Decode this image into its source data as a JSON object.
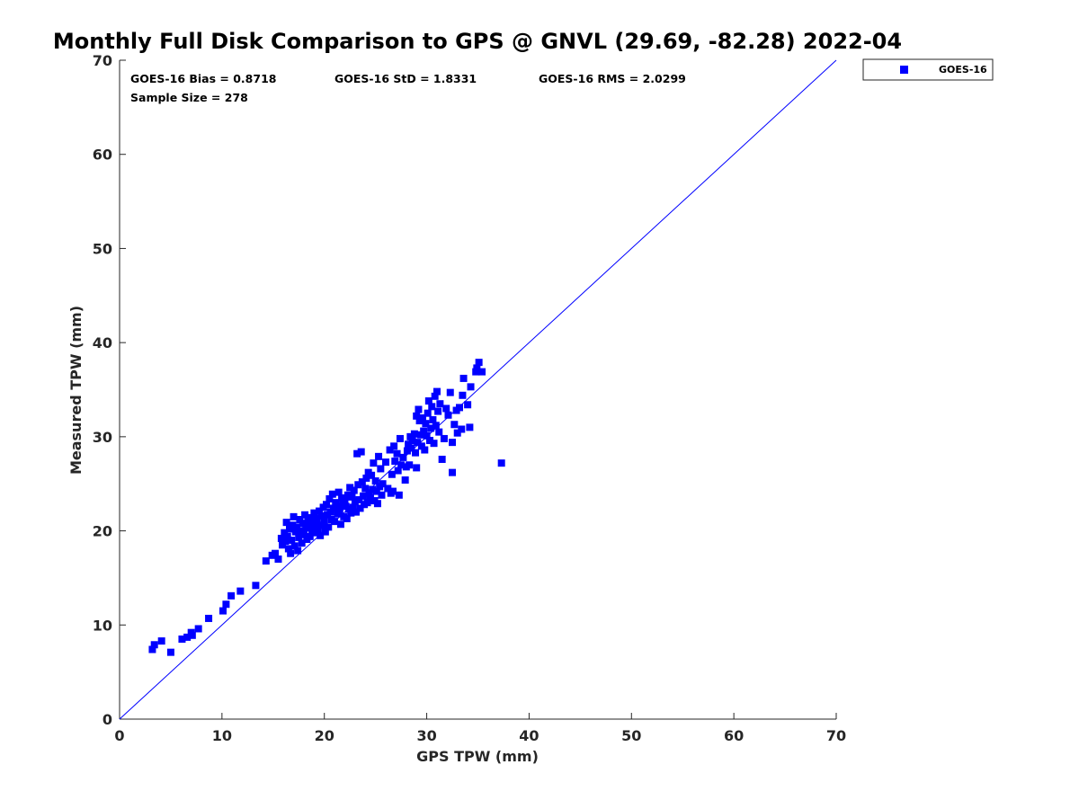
{
  "chart_data": {
    "type": "scatter",
    "title": "Monthly Full Disk Comparison to GPS @ GNVL (29.69, -82.28) 2022-04",
    "xlabel": "GPS TPW (mm)",
    "ylabel": "Measured TPW (mm)",
    "xlim": [
      0,
      70
    ],
    "ylim": [
      0,
      70
    ],
    "xticks": [
      "0",
      "10",
      "20",
      "30",
      "40",
      "50",
      "60",
      "70"
    ],
    "yticks": [
      "0",
      "10",
      "20",
      "30",
      "40",
      "50",
      "60",
      "70"
    ],
    "grid": false,
    "legend_position": "outside top-right",
    "reference_line": {
      "from": [
        0,
        0
      ],
      "to": [
        70,
        70
      ],
      "color": "#0000ff"
    },
    "stats": {
      "bias": "GOES-16 Bias = 0.8718",
      "std": "GOES-16 StD = 1.8331",
      "rms": "GOES-16 RMS = 2.0299",
      "sample_size": "Sample Size = 278"
    },
    "series": [
      {
        "name": "GOES-16",
        "color": "#0000ff",
        "marker": "square",
        "points": [
          [
            3.2,
            7.4
          ],
          [
            3.4,
            7.9
          ],
          [
            4.1,
            8.3
          ],
          [
            5.0,
            7.1
          ],
          [
            6.1,
            8.5
          ],
          [
            6.6,
            8.7
          ],
          [
            7.0,
            9.2
          ],
          [
            7.1,
            8.9
          ],
          [
            7.7,
            9.6
          ],
          [
            8.7,
            10.7
          ],
          [
            10.1,
            11.5
          ],
          [
            10.4,
            12.2
          ],
          [
            10.9,
            13.1
          ],
          [
            11.8,
            13.6
          ],
          [
            13.3,
            14.2
          ],
          [
            14.3,
            16.8
          ],
          [
            14.9,
            17.4
          ],
          [
            15.2,
            17.6
          ],
          [
            15.5,
            17.0
          ],
          [
            15.8,
            19.2
          ],
          [
            15.9,
            18.5
          ],
          [
            16.1,
            19.8
          ],
          [
            16.2,
            18.9
          ],
          [
            16.3,
            20.9
          ],
          [
            16.4,
            19.4
          ],
          [
            16.5,
            18.1
          ],
          [
            16.6,
            20.2
          ],
          [
            16.7,
            17.6
          ],
          [
            16.8,
            19.0
          ],
          [
            16.9,
            20.6
          ],
          [
            17.0,
            21.5
          ],
          [
            17.1,
            18.4
          ],
          [
            17.2,
            19.9
          ],
          [
            17.3,
            20.4
          ],
          [
            17.4,
            17.9
          ],
          [
            17.5,
            19.3
          ],
          [
            17.6,
            21.2
          ],
          [
            17.7,
            20.0
          ],
          [
            17.8,
            18.7
          ],
          [
            17.9,
            20.8
          ],
          [
            18.0,
            19.6
          ],
          [
            18.1,
            21.7
          ],
          [
            18.2,
            20.3
          ],
          [
            18.3,
            19.1
          ],
          [
            18.4,
            21.0
          ],
          [
            18.5,
            20.5
          ],
          [
            18.6,
            19.4
          ],
          [
            18.7,
            21.4
          ],
          [
            18.8,
            20.1
          ],
          [
            18.9,
            20.7
          ],
          [
            19.0,
            21.9
          ],
          [
            19.1,
            19.8
          ],
          [
            19.2,
            20.9
          ],
          [
            19.3,
            21.3
          ],
          [
            19.4,
            20.2
          ],
          [
            19.5,
            22.1
          ],
          [
            19.6,
            19.5
          ],
          [
            19.7,
            21.6
          ],
          [
            19.8,
            20.6
          ],
          [
            19.9,
            22.5
          ],
          [
            20.0,
            21.1
          ],
          [
            20.1,
            19.9
          ],
          [
            20.2,
            22.8
          ],
          [
            20.3,
            21.7
          ],
          [
            20.4,
            20.4
          ],
          [
            20.5,
            23.4
          ],
          [
            20.6,
            22.0
          ],
          [
            20.7,
            21.2
          ],
          [
            20.8,
            23.9
          ],
          [
            20.9,
            22.4
          ],
          [
            21.0,
            21.0
          ],
          [
            21.1,
            23.0
          ],
          [
            21.2,
            22.7
          ],
          [
            21.3,
            21.8
          ],
          [
            21.4,
            24.1
          ],
          [
            21.5,
            22.2
          ],
          [
            21.6,
            20.7
          ],
          [
            21.7,
            23.5
          ],
          [
            21.8,
            22.9
          ],
          [
            21.9,
            21.5
          ],
          [
            22.0,
            23.2
          ],
          [
            22.1,
            22.6
          ],
          [
            22.2,
            21.3
          ],
          [
            22.3,
            23.8
          ],
          [
            22.4,
            22.3
          ],
          [
            22.5,
            24.6
          ],
          [
            22.6,
            21.9
          ],
          [
            22.7,
            23.6
          ],
          [
            22.8,
            22.5
          ],
          [
            22.9,
            24.3
          ],
          [
            23.0,
            23.1
          ],
          [
            23.1,
            22.0
          ],
          [
            23.2,
            28.2
          ],
          [
            23.3,
            24.9
          ],
          [
            23.4,
            23.3
          ],
          [
            23.5,
            22.4
          ],
          [
            23.6,
            28.4
          ],
          [
            23.7,
            25.2
          ],
          [
            23.8,
            23.7
          ],
          [
            23.9,
            22.8
          ],
          [
            24.0,
            24.5
          ],
          [
            24.1,
            25.6
          ],
          [
            24.2,
            23.0
          ],
          [
            24.3,
            26.2
          ],
          [
            24.4,
            24.0
          ],
          [
            24.5,
            23.5
          ],
          [
            24.6,
            25.9
          ],
          [
            24.7,
            24.4
          ],
          [
            24.8,
            27.2
          ],
          [
            24.9,
            23.2
          ],
          [
            25.0,
            25.3
          ],
          [
            25.1,
            24.2
          ],
          [
            25.2,
            22.9
          ],
          [
            25.3,
            27.9
          ],
          [
            25.4,
            24.7
          ],
          [
            25.5,
            26.6
          ],
          [
            25.6,
            23.8
          ],
          [
            25.7,
            25.0
          ],
          [
            26.0,
            27.3
          ],
          [
            26.2,
            24.5
          ],
          [
            26.4,
            28.6
          ],
          [
            26.5,
            24.0
          ],
          [
            26.6,
            26.0
          ],
          [
            26.7,
            24.2
          ],
          [
            26.8,
            29.0
          ],
          [
            26.9,
            27.4
          ],
          [
            27.1,
            28.2
          ],
          [
            27.2,
            26.4
          ],
          [
            27.4,
            29.8
          ],
          [
            27.5,
            27.0
          ],
          [
            27.7,
            27.8
          ],
          [
            27.9,
            25.4
          ],
          [
            28.0,
            26.8
          ],
          [
            28.1,
            28.5
          ],
          [
            28.2,
            29.2
          ],
          [
            28.4,
            30.0
          ],
          [
            28.5,
            28.8
          ],
          [
            28.6,
            29.6
          ],
          [
            28.8,
            30.3
          ],
          [
            28.9,
            28.3
          ],
          [
            29.0,
            32.2
          ],
          [
            29.1,
            29.4
          ],
          [
            29.2,
            32.9
          ],
          [
            29.3,
            31.7
          ],
          [
            29.4,
            30.2
          ],
          [
            29.5,
            29.0
          ],
          [
            29.6,
            32.0
          ],
          [
            29.7,
            30.6
          ],
          [
            29.8,
            28.6
          ],
          [
            29.9,
            31.4
          ],
          [
            30.0,
            30.1
          ],
          [
            30.1,
            32.5
          ],
          [
            30.2,
            33.8
          ],
          [
            30.3,
            29.6
          ],
          [
            30.4,
            30.9
          ],
          [
            30.5,
            33.2
          ],
          [
            30.6,
            31.8
          ],
          [
            30.7,
            29.3
          ],
          [
            30.8,
            34.3
          ],
          [
            30.9,
            31.2
          ],
          [
            31.0,
            34.8
          ],
          [
            31.1,
            32.7
          ],
          [
            31.2,
            30.5
          ],
          [
            31.3,
            33.5
          ],
          [
            31.5,
            27.6
          ],
          [
            31.7,
            29.8
          ],
          [
            31.9,
            33.0
          ],
          [
            32.1,
            32.3
          ],
          [
            32.3,
            34.7
          ],
          [
            32.5,
            29.4
          ],
          [
            32.5,
            26.2
          ],
          [
            32.7,
            31.3
          ],
          [
            32.9,
            32.8
          ],
          [
            33.0,
            30.4
          ],
          [
            33.2,
            33.1
          ],
          [
            33.4,
            30.8
          ],
          [
            33.5,
            34.4
          ],
          [
            33.6,
            36.2
          ],
          [
            34.0,
            33.4
          ],
          [
            34.2,
            31.0
          ],
          [
            34.3,
            35.3
          ],
          [
            34.8,
            36.9
          ],
          [
            34.9,
            37.3
          ],
          [
            35.1,
            37.9
          ],
          [
            35.4,
            36.9
          ],
          [
            37.3,
            27.2
          ],
          [
            28.3,
            27.0
          ],
          [
            29.0,
            26.7
          ],
          [
            27.3,
            23.8
          ]
        ]
      }
    ]
  }
}
